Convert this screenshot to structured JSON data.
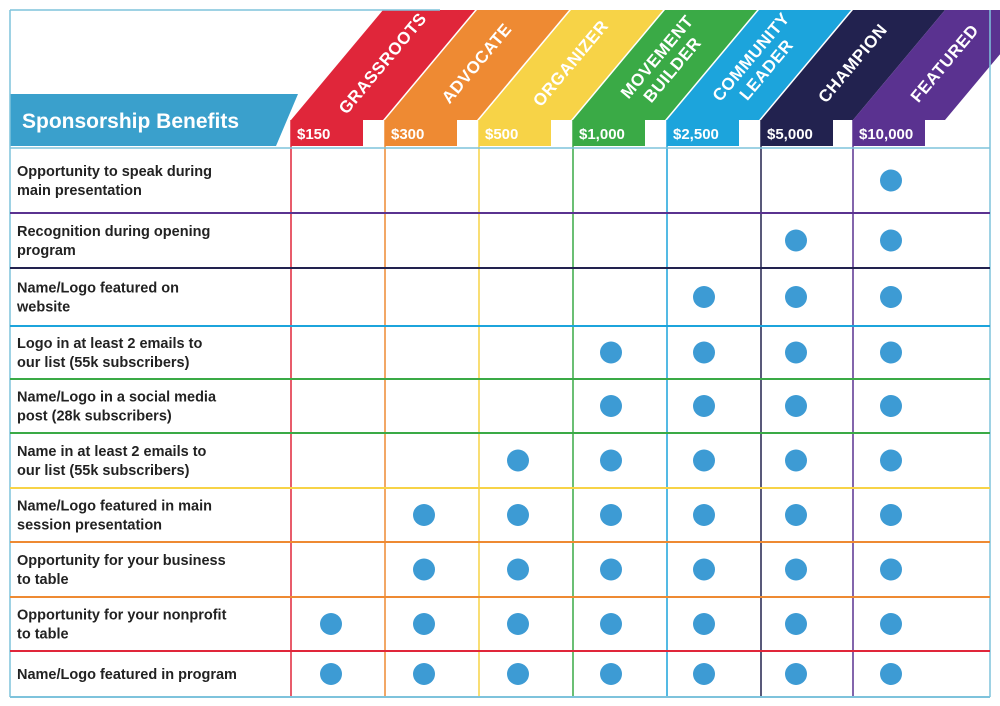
{
  "title": "Sponsorship Benefits",
  "colors": {
    "frame": "#7ec3dc",
    "title_bg": "#3aa0cc",
    "dot": "#3d9bd4",
    "text": "#222222"
  },
  "tiers": [
    {
      "id": "grassroots",
      "lines": [
        "GRASSROOTS"
      ],
      "price": "$150",
      "color": "#e0263a"
    },
    {
      "id": "advocate",
      "lines": [
        "ADVOCATE"
      ],
      "price": "$300",
      "color": "#ee8a33"
    },
    {
      "id": "organizer",
      "lines": [
        "ORGANIZER"
      ],
      "price": "$500",
      "color": "#f7d347"
    },
    {
      "id": "movement-builder",
      "lines": [
        "MOVEMENT",
        "BUILDER"
      ],
      "price": "$1,000",
      "color": "#3aaa46"
    },
    {
      "id": "community-leader",
      "lines": [
        "COMMUNITY",
        "LEADER"
      ],
      "price": "$2,500",
      "color": "#1ca4dc"
    },
    {
      "id": "champion",
      "lines": [
        "CHAMPION"
      ],
      "price": "$5,000",
      "color": "#22224f"
    },
    {
      "id": "featured",
      "lines": [
        "FEATURED"
      ],
      "price": "$10,000",
      "color": "#5a3290"
    }
  ],
  "benefits": [
    {
      "lines": [
        "Opportunity to speak during",
        "main presentation"
      ],
      "tiers": [
        false,
        false,
        false,
        false,
        false,
        false,
        true
      ]
    },
    {
      "lines": [
        "Recognition during opening",
        "program"
      ],
      "tiers": [
        false,
        false,
        false,
        false,
        false,
        true,
        true
      ]
    },
    {
      "lines": [
        "Name/Logo featured on",
        "website"
      ],
      "tiers": [
        false,
        false,
        false,
        false,
        true,
        true,
        true
      ]
    },
    {
      "lines": [
        "Logo in at least 2 emails to",
        "our list (55k subscribers)"
      ],
      "tiers": [
        false,
        false,
        false,
        true,
        true,
        true,
        true
      ]
    },
    {
      "lines": [
        "Name/Logo in a social media",
        "post (28k subscribers)"
      ],
      "tiers": [
        false,
        false,
        false,
        true,
        true,
        true,
        true
      ]
    },
    {
      "lines": [
        "Name in at least 2 emails to",
        "our list (55k subscribers)"
      ],
      "tiers": [
        false,
        false,
        true,
        true,
        true,
        true,
        true
      ]
    },
    {
      "lines": [
        "Name/Logo featured in main",
        "session presentation"
      ],
      "tiers": [
        false,
        true,
        true,
        true,
        true,
        true,
        true
      ]
    },
    {
      "lines": [
        "Opportunity for your business",
        "to table"
      ],
      "tiers": [
        false,
        true,
        true,
        true,
        true,
        true,
        true
      ]
    },
    {
      "lines": [
        "Opportunity for your nonprofit",
        "to table"
      ],
      "tiers": [
        true,
        true,
        true,
        true,
        true,
        true,
        true
      ]
    },
    {
      "lines": [
        "Name/Logo featured in program"
      ],
      "tiers": [
        true,
        true,
        true,
        true,
        true,
        true,
        true
      ]
    }
  ]
}
